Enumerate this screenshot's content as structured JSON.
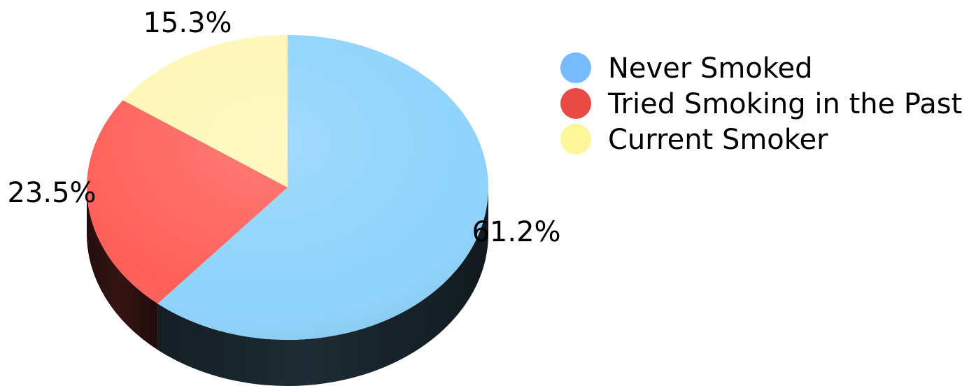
{
  "chart_data": {
    "type": "pie",
    "style": "3d",
    "slices": [
      {
        "label": "Never Smoked",
        "value": 61.2,
        "value_label": "61.2%",
        "color": "#8ED3FC"
      },
      {
        "label": "Tried Smoking in the Past",
        "value": 23.5,
        "value_label": "23.5%",
        "color": "#FF5F59"
      },
      {
        "label": "Current Smoker",
        "value": 15.3,
        "value_label": "15.3%",
        "color": "#FFF7B5"
      }
    ],
    "legend": {
      "placement": "top-right",
      "items": [
        {
          "label": "Never Smoked",
          "color": "#77BBFF"
        },
        {
          "label": "Tried Smoking in the Past",
          "color": "#E84A45"
        },
        {
          "label": "Current Smoker",
          "color": "#FFF59A"
        }
      ]
    }
  }
}
